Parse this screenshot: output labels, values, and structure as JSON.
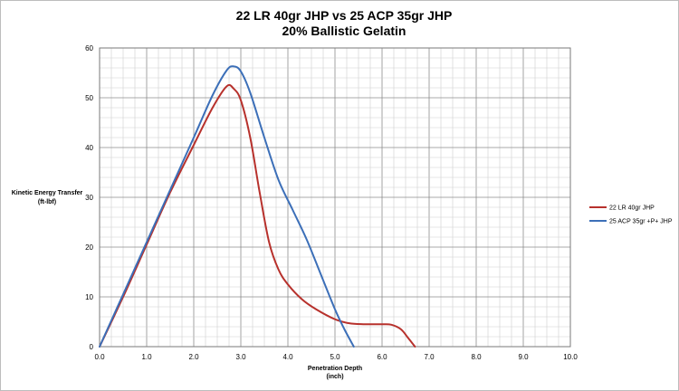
{
  "chart_data": {
    "type": "line",
    "title": "22 LR 40gr JHP vs 25 ACP 35gr JHP",
    "subtitle": "20% Ballistic Gelatin",
    "xlabel": "Penetration Depth",
    "xlabel_unit": "(inch)",
    "ylabel": "Kinetic Energy Transfer",
    "ylabel_unit": "(ft-lbf)",
    "xlim": [
      0,
      10
    ],
    "ylim": [
      0,
      60
    ],
    "x_ticks": [
      "0.0",
      "1.0",
      "2.0",
      "3.0",
      "4.0",
      "5.0",
      "6.0",
      "7.0",
      "8.0",
      "9.0",
      "10.0"
    ],
    "y_ticks": [
      "0",
      "10",
      "20",
      "30",
      "40",
      "50",
      "60"
    ],
    "grid": true,
    "legend_position": "right",
    "series": [
      {
        "name": "22 LR 40gr JHP",
        "color": "#b7312c",
        "points": [
          [
            0,
            0
          ],
          [
            0.5,
            10
          ],
          [
            1.0,
            20.5
          ],
          [
            1.5,
            31
          ],
          [
            2.0,
            40.5
          ],
          [
            2.4,
            48
          ],
          [
            2.7,
            52.3
          ],
          [
            2.85,
            51.8
          ],
          [
            3.0,
            49.5
          ],
          [
            3.2,
            42
          ],
          [
            3.4,
            31
          ],
          [
            3.6,
            21
          ],
          [
            3.8,
            15.5
          ],
          [
            4.0,
            12.5
          ],
          [
            4.3,
            9.5
          ],
          [
            4.6,
            7.5
          ],
          [
            5.0,
            5.5
          ],
          [
            5.3,
            4.7
          ],
          [
            5.6,
            4.5
          ],
          [
            6.0,
            4.5
          ],
          [
            6.2,
            4.4
          ],
          [
            6.4,
            3.5
          ],
          [
            6.55,
            1.8
          ],
          [
            6.7,
            0
          ]
        ]
      },
      {
        "name": "25 ACP 35gr +P+ JHP",
        "color": "#3c6fb8",
        "points": [
          [
            0,
            0
          ],
          [
            0.5,
            10.5
          ],
          [
            1.0,
            21
          ],
          [
            1.5,
            31.5
          ],
          [
            2.0,
            42
          ],
          [
            2.4,
            50.5
          ],
          [
            2.7,
            55.5
          ],
          [
            2.85,
            56.3
          ],
          [
            3.0,
            55.3
          ],
          [
            3.2,
            51
          ],
          [
            3.5,
            42
          ],
          [
            3.8,
            33.5
          ],
          [
            4.1,
            27.5
          ],
          [
            4.4,
            21.5
          ],
          [
            4.7,
            14.5
          ],
          [
            5.0,
            7.5
          ],
          [
            5.2,
            3.5
          ],
          [
            5.4,
            0
          ]
        ]
      }
    ]
  }
}
